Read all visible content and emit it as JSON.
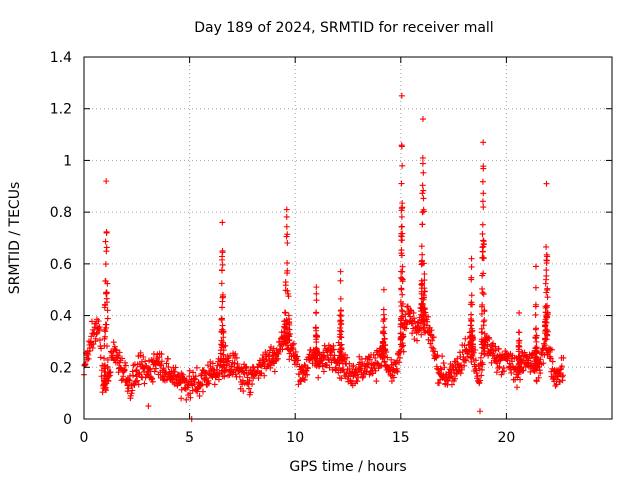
{
  "chart_data": {
    "type": "scatter",
    "title": "Day 189 of 2024, SRMTID for receiver mall",
    "xlabel": "GPS time / hours",
    "ylabel": "SRMTID / TECUs",
    "xlim": [
      0,
      25
    ],
    "ylim": [
      0,
      1.4
    ],
    "xticks": [
      0,
      5,
      10,
      15,
      20
    ],
    "xtick_labels": [
      "0",
      "5",
      "10",
      "15",
      "20"
    ],
    "yticks": [
      0,
      0.2,
      0.4,
      0.6,
      0.8,
      1.0,
      1.2,
      1.4
    ],
    "ytick_labels": [
      "0",
      "0.2",
      "0.4",
      "0.6",
      "0.8",
      "1",
      "1.2",
      "1.4"
    ],
    "grid": true,
    "marker": "plus",
    "color": "#ff0000",
    "x_range_data": [
      0,
      22.7
    ],
    "baseline_segments": [
      [
        0.0,
        0.22
      ],
      [
        0.4,
        0.3
      ],
      [
        0.7,
        0.38
      ],
      [
        0.9,
        0.12
      ],
      [
        1.1,
        0.15
      ],
      [
        1.4,
        0.26
      ],
      [
        1.8,
        0.2
      ],
      [
        2.2,
        0.13
      ],
      [
        2.6,
        0.19
      ],
      [
        3.0,
        0.18
      ],
      [
        3.5,
        0.23
      ],
      [
        4.0,
        0.17
      ],
      [
        4.5,
        0.16
      ],
      [
        5.0,
        0.13
      ],
      [
        5.5,
        0.14
      ],
      [
        6.0,
        0.18
      ],
      [
        6.5,
        0.2
      ],
      [
        7.0,
        0.22
      ],
      [
        7.5,
        0.16
      ],
      [
        8.0,
        0.17
      ],
      [
        8.5,
        0.22
      ],
      [
        9.0,
        0.24
      ],
      [
        9.5,
        0.32
      ],
      [
        9.9,
        0.26
      ],
      [
        10.3,
        0.17
      ],
      [
        10.8,
        0.24
      ],
      [
        11.3,
        0.22
      ],
      [
        11.8,
        0.26
      ],
      [
        12.3,
        0.2
      ],
      [
        12.8,
        0.18
      ],
      [
        13.3,
        0.2
      ],
      [
        13.8,
        0.22
      ],
      [
        14.2,
        0.24
      ],
      [
        14.6,
        0.16
      ],
      [
        15.0,
        0.26
      ],
      [
        15.3,
        0.4
      ],
      [
        15.7,
        0.36
      ],
      [
        16.1,
        0.38
      ],
      [
        16.5,
        0.3
      ],
      [
        16.8,
        0.17
      ],
      [
        17.3,
        0.17
      ],
      [
        17.8,
        0.22
      ],
      [
        18.3,
        0.28
      ],
      [
        18.7,
        0.15
      ],
      [
        19.0,
        0.3
      ],
      [
        19.5,
        0.24
      ],
      [
        20.0,
        0.23
      ],
      [
        20.5,
        0.18
      ],
      [
        21.0,
        0.24
      ],
      [
        21.5,
        0.18
      ],
      [
        21.9,
        0.3
      ],
      [
        22.3,
        0.17
      ],
      [
        22.7,
        0.19
      ]
    ],
    "spikes": [
      {
        "x": 1.05,
        "peak": 0.92,
        "width": 0.22
      },
      {
        "x": 6.55,
        "peak": 0.76,
        "width": 0.14
      },
      {
        "x": 9.6,
        "peak": 0.81,
        "width": 0.26
      },
      {
        "x": 11.0,
        "peak": 0.51,
        "width": 0.1
      },
      {
        "x": 12.15,
        "peak": 0.57,
        "width": 0.12
      },
      {
        "x": 14.2,
        "peak": 0.5,
        "width": 0.14
      },
      {
        "x": 15.05,
        "peak": 1.25,
        "width": 0.12
      },
      {
        "x": 16.05,
        "peak": 1.16,
        "width": 0.18
      },
      {
        "x": 18.35,
        "peak": 0.62,
        "width": 0.14
      },
      {
        "x": 18.9,
        "peak": 1.07,
        "width": 0.16
      },
      {
        "x": 20.6,
        "peak": 0.41,
        "width": 0.08
      },
      {
        "x": 21.4,
        "peak": 0.59,
        "width": 0.1
      },
      {
        "x": 21.9,
        "peak": 0.91,
        "width": 0.14
      }
    ],
    "outliers": [
      [
        5.1,
        0.0
      ],
      [
        18.75,
        0.03
      ],
      [
        4.6,
        0.08
      ],
      [
        3.05,
        0.05
      ]
    ]
  }
}
